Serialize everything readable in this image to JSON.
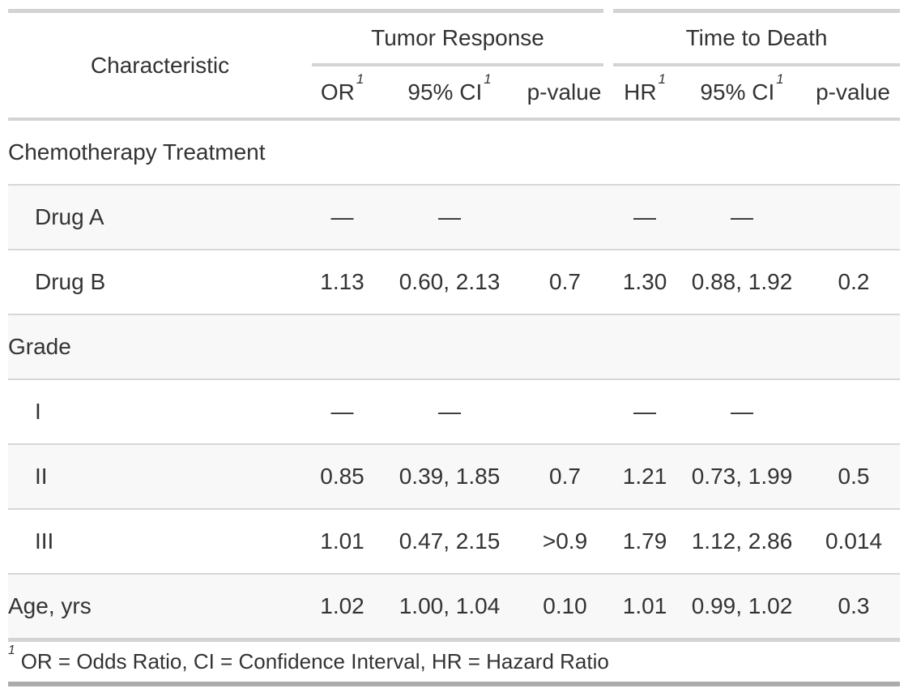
{
  "table": {
    "char_header": "Characteristic",
    "spanners": [
      {
        "label": "Tumor Response"
      },
      {
        "label": "Time to Death"
      }
    ],
    "columns": [
      {
        "label": "OR",
        "sup": "1"
      },
      {
        "label": "95% CI",
        "sup": "1"
      },
      {
        "label": "p-value",
        "sup": ""
      },
      {
        "label": "HR",
        "sup": "1"
      },
      {
        "label": "95% CI",
        "sup": "1"
      },
      {
        "label": "p-value",
        "sup": ""
      }
    ],
    "rows": [
      {
        "label": "Chemotherapy Treatment",
        "indent": false,
        "shaded": false,
        "cells": [
          "",
          "",
          "",
          "",
          "",
          ""
        ]
      },
      {
        "label": "Drug A",
        "indent": true,
        "shaded": true,
        "cells": [
          "—",
          "—",
          "",
          "—",
          "—",
          ""
        ]
      },
      {
        "label": "Drug B",
        "indent": true,
        "shaded": false,
        "cells": [
          "1.13",
          "0.60, 2.13",
          "0.7",
          "1.30",
          "0.88, 1.92",
          "0.2"
        ]
      },
      {
        "label": "Grade",
        "indent": false,
        "shaded": true,
        "cells": [
          "",
          "",
          "",
          "",
          "",
          ""
        ]
      },
      {
        "label": "I",
        "indent": true,
        "shaded": false,
        "cells": [
          "—",
          "—",
          "",
          "—",
          "—",
          ""
        ]
      },
      {
        "label": "II",
        "indent": true,
        "shaded": true,
        "cells": [
          "0.85",
          "0.39, 1.85",
          "0.7",
          "1.21",
          "0.73, 1.99",
          "0.5"
        ]
      },
      {
        "label": "III",
        "indent": true,
        "shaded": false,
        "cells": [
          "1.01",
          "0.47, 2.15",
          ">0.9",
          "1.79",
          "1.12, 2.86",
          "0.014"
        ]
      },
      {
        "label": "Age, yrs",
        "indent": false,
        "shaded": true,
        "cells": [
          "1.02",
          "1.00, 1.04",
          "0.10",
          "1.01",
          "0.99, 1.02",
          "0.3"
        ]
      }
    ],
    "footnote": {
      "mark": "1",
      "text": "OR = Odds Ratio, CI = Confidence Interval, HR = Hazard Ratio"
    }
  },
  "chart_data": {
    "type": "table",
    "title": "",
    "column_groups": [
      "",
      "Tumor Response",
      "Tumor Response",
      "Tumor Response",
      "Time to Death",
      "Time to Death",
      "Time to Death"
    ],
    "columns": [
      "Characteristic",
      "OR",
      "95% CI",
      "p-value",
      "HR",
      "95% CI",
      "p-value"
    ],
    "rows": [
      [
        "Chemotherapy Treatment",
        "",
        "",
        "",
        "",
        "",
        ""
      ],
      [
        "Drug A",
        "—",
        "—",
        "",
        "—",
        "—",
        ""
      ],
      [
        "Drug B",
        "1.13",
        "0.60, 2.13",
        "0.7",
        "1.30",
        "0.88, 1.92",
        "0.2"
      ],
      [
        "Grade",
        "",
        "",
        "",
        "",
        "",
        ""
      ],
      [
        "I",
        "—",
        "—",
        "",
        "—",
        "—",
        ""
      ],
      [
        "II",
        "0.85",
        "0.39, 1.85",
        "0.7",
        "1.21",
        "0.73, 1.99",
        "0.5"
      ],
      [
        "III",
        "1.01",
        "0.47, 2.15",
        ">0.9",
        "1.79",
        "1.12, 2.86",
        "0.014"
      ],
      [
        "Age, yrs",
        "1.02",
        "1.00, 1.04",
        "0.10",
        "1.01",
        "0.99, 1.02",
        "0.3"
      ]
    ],
    "footnote": "1 OR = Odds Ratio, CI = Confidence Interval, HR = Hazard Ratio",
    "layout": {
      "shaded_row_color": "#f8f8f8",
      "border_color": "#d3d3d3",
      "bottom_border_color": "#acacac",
      "text_color": "#333333"
    }
  }
}
